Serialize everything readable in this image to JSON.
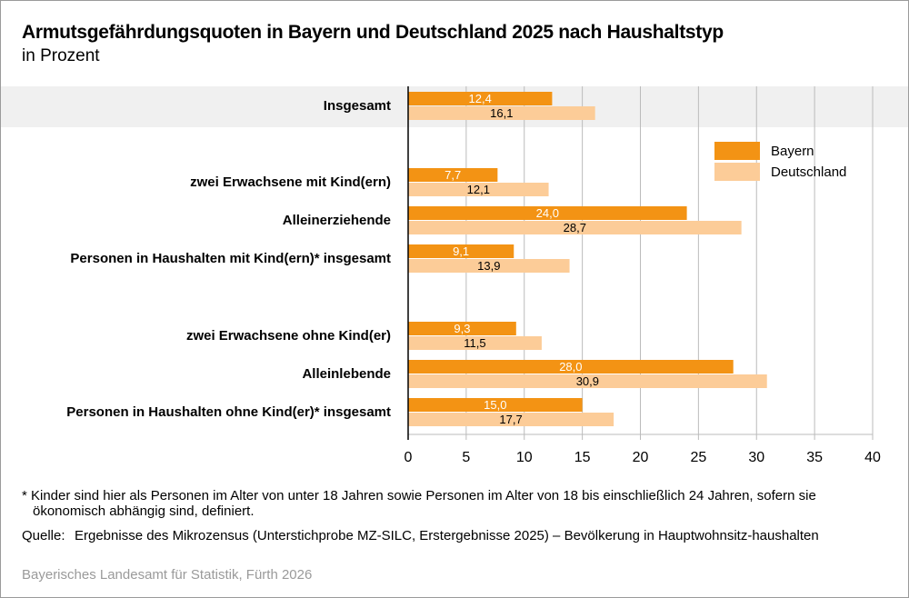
{
  "title": "Armutsgefährdungsquoten in Bayern und Deutschland 2025 nach Haushaltstyp",
  "subtitle": "in Prozent",
  "colors": {
    "Bayern": "#f39314",
    "Deutschland": "#fccc98",
    "highlight_band": "#f0f0f0",
    "grid": "#bbbbbb"
  },
  "chart_data": {
    "type": "bar",
    "orientation": "horizontal",
    "categories": [
      "Insgesamt",
      "zwei Erwachsene mit Kind(ern)",
      "Alleinerziehende",
      "Personen in Haushalten mit Kind(ern)* insgesamt",
      "zwei Erwachsene ohne Kind(er)",
      "Alleinlebende",
      "Personen in Haushalten ohne Kind(er)* insgesamt"
    ],
    "bold_categories": [
      "Insgesamt",
      "Alleinerziehende",
      "Alleinlebende"
    ],
    "series": [
      {
        "name": "Bayern",
        "values": [
          12.4,
          7.7,
          24.0,
          9.1,
          9.3,
          28.0,
          15.0
        ],
        "labels": [
          "12,4",
          "7,7",
          "24,0",
          "9,1",
          "9,3",
          "28,0",
          "15,0"
        ]
      },
      {
        "name": "Deutschland",
        "values": [
          16.1,
          12.1,
          28.7,
          13.9,
          11.5,
          30.9,
          17.7
        ],
        "labels": [
          "16,1",
          "12,1",
          "28,7",
          "13,9",
          "11,5",
          "30,9",
          "17,7"
        ]
      }
    ],
    "xlim": [
      0,
      40
    ],
    "xticks": [
      "0",
      "5",
      "10",
      "15",
      "20",
      "25",
      "30",
      "35",
      "40"
    ],
    "grid": true,
    "legend": "top-right"
  },
  "footnote": "* Kinder sind hier als Personen im Alter von unter 18 Jahren sowie Personen im Alter von 18 bis einschließlich 24 Jahren, sofern sie ökonomisch abhängig sind, definiert.",
  "source_label": "Quelle:",
  "source": "Ergebnisse des Mikrozensus (Unterstichprobe MZ-SILC, Erstergebnisse 2025) – Bevölkerung in Hauptwohnsitz-haushalten",
  "credit": "Bayerisches Landesamt für Statistik, Fürth 2026"
}
